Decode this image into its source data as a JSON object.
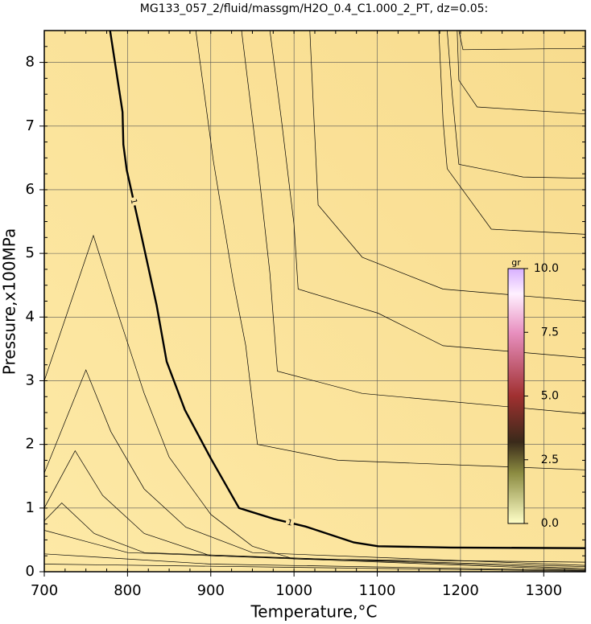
{
  "chart_data": {
    "type": "contour",
    "title": "MG133_057_2/fluid/massgm/H2O_0.4_C1.000_2_PT, dz=0.05:",
    "x_label": "Temperature,°C",
    "y_label": "Pressure,x100MPa",
    "xlim": [
      700,
      1350
    ],
    "ylim": [
      0,
      8.5
    ],
    "xticks": [
      700,
      800,
      900,
      1000,
      1100,
      1200,
      1300
    ],
    "yticks": [
      0,
      1,
      2,
      3,
      4,
      5,
      6,
      7,
      8
    ],
    "grid": true,
    "contours": [
      {
        "label": "1",
        "bold": true,
        "x": [
          779,
          794,
          795,
          799,
          816,
          835,
          847,
          869,
          900,
          934,
          976,
          1014,
          1072,
          1101,
          1188,
          1350
        ],
        "y": [
          8.5,
          7.22,
          6.71,
          6.31,
          5.32,
          4.18,
          3.3,
          2.54,
          1.78,
          1.0,
          0.83,
          0.71,
          0.46,
          0.4,
          0.38,
          0.37
        ]
      },
      {
        "x": [
          700,
          759,
          790,
          820,
          850,
          900,
          950,
          1000,
          1350
        ],
        "y": [
          3.0,
          5.28,
          4.0,
          2.8,
          1.8,
          0.9,
          0.4,
          0.2,
          0.15
        ]
      },
      {
        "x": [
          700,
          750,
          780,
          820,
          870,
          950,
          1350
        ],
        "y": [
          1.55,
          3.17,
          2.2,
          1.3,
          0.7,
          0.3,
          0.1
        ]
      },
      {
        "x": [
          700,
          737,
          770,
          820,
          900,
          1350
        ],
        "y": [
          1.0,
          1.9,
          1.2,
          0.6,
          0.25,
          0.08
        ]
      },
      {
        "x": [
          700,
          721,
          760,
          820,
          1350
        ],
        "y": [
          0.8,
          1.08,
          0.6,
          0.3,
          0.05
        ]
      },
      {
        "x": [
          700,
          800,
          1350
        ],
        "y": [
          0.65,
          0.3,
          0.03
        ]
      },
      {
        "x": [
          700,
          900,
          1350
        ],
        "y": [
          0.28,
          0.12,
          0.02
        ]
      },
      {
        "x": [
          700,
          1350
        ],
        "y": [
          0.12,
          0.01
        ]
      },
      {
        "x": [
          882,
          903,
          927,
          942,
          956,
          1053,
          1350
        ],
        "y": [
          8.5,
          6.46,
          4.56,
          3.55,
          2.0,
          1.75,
          1.6
        ]
      },
      {
        "x": [
          937,
          956,
          971,
          980,
          1082,
          1350
        ],
        "y": [
          8.5,
          6.46,
          4.69,
          3.15,
          2.8,
          2.48
        ]
      },
      {
        "x": [
          971,
          985,
          1000,
          1005,
          1101,
          1179,
          1350
        ],
        "y": [
          8.5,
          7.09,
          5.45,
          4.44,
          4.06,
          3.55,
          3.36
        ]
      },
      {
        "x": [
          1019,
          1024,
          1029,
          1082,
          1179,
          1350
        ],
        "y": [
          8.5,
          7.09,
          5.76,
          4.94,
          4.44,
          4.25
        ]
      },
      {
        "x": [
          1174,
          1179,
          1184,
          1237,
          1350
        ],
        "y": [
          8.5,
          7.09,
          6.33,
          5.38,
          5.3
        ]
      },
      {
        "x": [
          1184,
          1190,
          1198,
          1275,
          1350
        ],
        "y": [
          8.5,
          7.5,
          6.4,
          6.2,
          6.18
        ]
      },
      {
        "x": [
          1196,
          1198,
          1220,
          1350
        ],
        "y": [
          8.5,
          7.72,
          7.3,
          7.19
        ]
      },
      {
        "x": [
          1198,
          1203,
          1350
        ],
        "y": [
          8.5,
          8.2,
          8.22
        ]
      }
    ],
    "colorbar": {
      "label": "gr",
      "lim": [
        0,
        10
      ],
      "ticks": [
        {
          "value": 0,
          "label": "0.0"
        },
        {
          "value": 2.5,
          "label": "2.5"
        },
        {
          "value": 5,
          "label": "5.0"
        },
        {
          "value": 7.5,
          "label": "7.5"
        },
        {
          "value": 10,
          "label": "10.0"
        }
      ]
    }
  }
}
